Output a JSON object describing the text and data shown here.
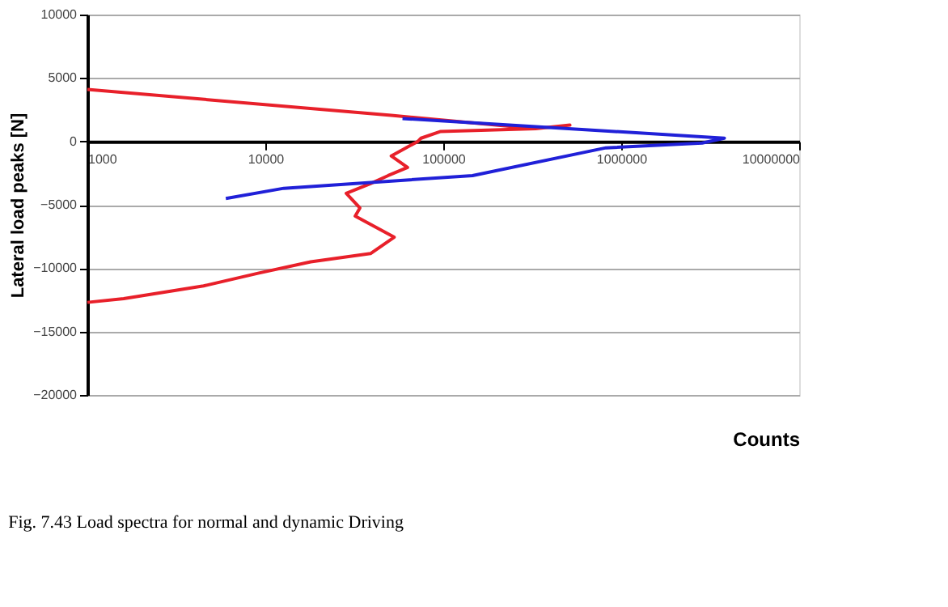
{
  "chart_data": {
    "type": "line",
    "xlabel": "Counts",
    "ylabel": "Lateral load peaks [N]",
    "series": [
      {
        "color": "#e8202a",
        "x": [
          1000,
          51000,
          330000,
          515000,
          330000,
          96000,
          75000,
          72000,
          51000,
          63000,
          49000,
          39000,
          28500,
          34000,
          32000,
          53000,
          39000,
          18000,
          9100,
          4500,
          1600,
          1000
        ],
        "values": [
          4100,
          2050,
          1000,
          1280,
          1000,
          770,
          250,
          0,
          -1150,
          -2050,
          -2700,
          -3330,
          -4100,
          -5250,
          -5900,
          -7560,
          -8850,
          -9500,
          -10400,
          -11400,
          -12400,
          -12700
        ]
      },
      {
        "color": "#2020d8",
        "x": [
          59000,
          3800000,
          2850000,
          820000,
          146000,
          12700,
          6000
        ],
        "values": [
          1800,
          250,
          -130,
          -510,
          -2700,
          -3700,
          -4500
        ]
      }
    ],
    "log": "x",
    "xlim": [
      1000,
      10000000
    ],
    "xticks": [
      1000,
      10000,
      100000,
      1000000,
      10000000
    ],
    "ylim": [
      -20000,
      10000
    ],
    "yticks": [
      -20000,
      -15000,
      -10000,
      -5000,
      0,
      5000,
      10000
    ],
    "grid": "y",
    "legend": false,
    "line_style": "solid",
    "marker": "none",
    "annotations": [
      "Fig. 7.43 Load spectra for normal and dynamic Driving"
    ]
  }
}
